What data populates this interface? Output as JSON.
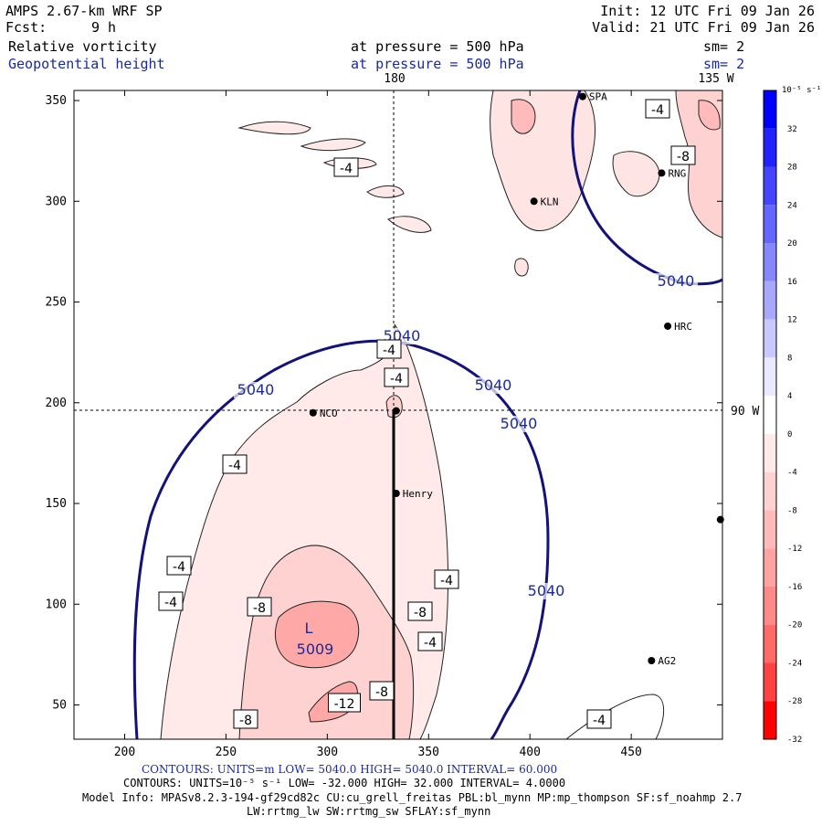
{
  "header": {
    "model": "AMPS 2.67-km WRF SP",
    "init": "Init: 12 UTC Fri 09 Jan 26",
    "fcst_label": "Fcst:",
    "fcst_value": "9 h",
    "valid": "Valid: 21 UTC Fri 09 Jan 26",
    "field1": "Relative vorticity",
    "field1_level": "at pressure =  500 hPa",
    "field1_sm": "sm= 2",
    "field2": "Geopotential height",
    "field2_level": "at pressure =  500 hPa",
    "field2_sm": "sm= 2"
  },
  "map_labels": {
    "lon_180": "180",
    "lon_135w": "135 W",
    "lon_90w": "90 W",
    "low_letter": "L",
    "low_value": "5009"
  },
  "chart_data": {
    "type": "contour",
    "x_ticks": [
      200,
      250,
      300,
      350,
      400,
      450
    ],
    "y_ticks": [
      50,
      100,
      150,
      200,
      250,
      300,
      350
    ],
    "xlim": [
      175,
      495
    ],
    "ylim": [
      33,
      355
    ],
    "height_contour_labels": [
      "5040",
      "5040",
      "5040",
      "5040",
      "5040",
      "5040"
    ],
    "vorticity_labels": [
      "-4",
      "-8",
      "-4",
      "-4",
      "-4",
      "-4",
      "-4",
      "-4",
      "-4",
      "-8",
      "-8",
      "-4",
      "-8",
      "-12",
      "-8",
      "-4",
      "-4",
      "-4"
    ],
    "stations": [
      {
        "name": "NCO",
        "x": 293,
        "y": 195
      },
      {
        "name": "Henry",
        "x": 334,
        "y": 155
      },
      {
        "name": "KLN",
        "x": 402,
        "y": 300
      },
      {
        "name": "HRC",
        "x": 468,
        "y": 238
      },
      {
        "name": "AG2",
        "x": 460,
        "y": 72
      },
      {
        "name": "SPA",
        "x": 426,
        "y": 352
      },
      {
        "name": "RNG",
        "x": 465,
        "y": 314
      },
      {
        "name": "",
        "x": 334,
        "y": 196
      },
      {
        "name": "",
        "x": 494,
        "y": 142
      }
    ],
    "colorbar": {
      "unit_label": "10⁻⁵ s⁻¹",
      "labels": [
        "32",
        "28",
        "24",
        "20",
        "16",
        "12",
        "8",
        "4",
        "0",
        "-4",
        "-8",
        "-12",
        "-16",
        "-20",
        "-24",
        "-28",
        "-32"
      ],
      "colors": [
        "#0000ff",
        "#2222ff",
        "#4545ff",
        "#6565ff",
        "#8686ff",
        "#a8a8ff",
        "#c9c9ff",
        "#eaeaff",
        "#ffffff",
        "#ffe9e9",
        "#ffd2d2",
        "#ffbbbb",
        "#ffa3a3",
        "#ff8a8a",
        "#ff6b6b",
        "#ff4343",
        "#ff0000"
      ]
    },
    "contours_info": "CONTOURS:  UNITS=m  LOW=  5040.0      HIGH=  5040.0      INTERVAL=  60.000",
    "contours_info2": "CONTOURS:  UNITS=10⁻⁵ s⁻¹  LOW= -32.000      HIGH=  32.000      INTERVAL=  4.0000"
  },
  "footer": {
    "model_info": "Model Info: MPASv8.2.3-194-gf29cd82c CU:cu_grell_freitas PBL:bl_mynn MP:mp_thompson SF:sf_noahmp 2.7",
    "model_info2": "LW:rrtmg_lw SW:rrtmg_sw SFLAY:sf_mynn"
  }
}
